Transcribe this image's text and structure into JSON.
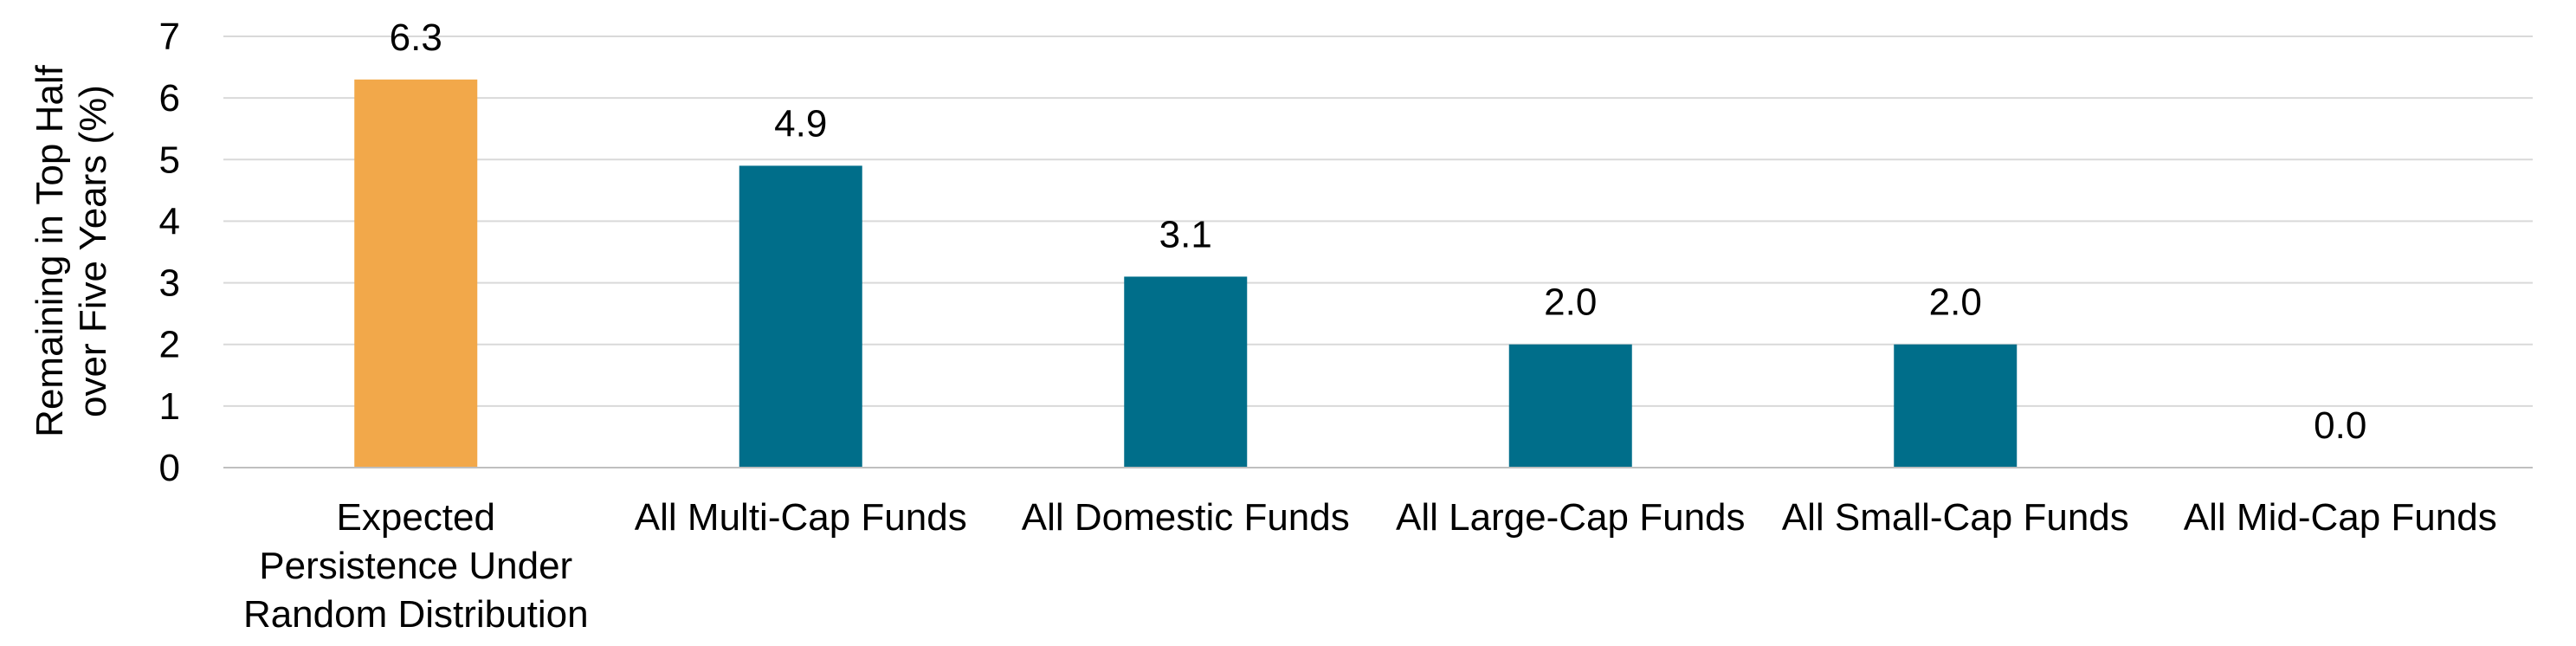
{
  "chart_data": {
    "type": "bar",
    "title": "",
    "xlabel": "",
    "ylabel_lines": [
      "Remaining in Top Half",
      "over Five Years (%)"
    ],
    "ylim": [
      0,
      7
    ],
    "yticks": [
      0,
      1,
      2,
      3,
      4,
      5,
      6,
      7
    ],
    "grid": true,
    "categories": [
      "Expected Persistence Under Random Distribution",
      "All Multi-Cap Funds",
      "All Domestic Funds",
      "All Large-Cap Funds",
      "All Small-Cap Funds",
      "All Mid-Cap Funds"
    ],
    "category_lines": [
      [
        "Expected",
        "Persistence Under",
        "Random Distribution"
      ],
      [
        "All Multi-Cap Funds"
      ],
      [
        "All Domestic Funds"
      ],
      [
        "All Large-Cap Funds"
      ],
      [
        "All Small-Cap Funds"
      ],
      [
        "All Mid-Cap Funds"
      ]
    ],
    "values": [
      6.3,
      4.9,
      3.1,
      2.0,
      2.0,
      0.0
    ],
    "value_labels": [
      "6.3",
      "4.9",
      "3.1",
      "2.0",
      "2.0",
      "0.0"
    ],
    "bar_colors": [
      "#F2A84A",
      "#006E8A",
      "#006E8A",
      "#006E8A",
      "#006E8A",
      "#006E8A"
    ]
  }
}
